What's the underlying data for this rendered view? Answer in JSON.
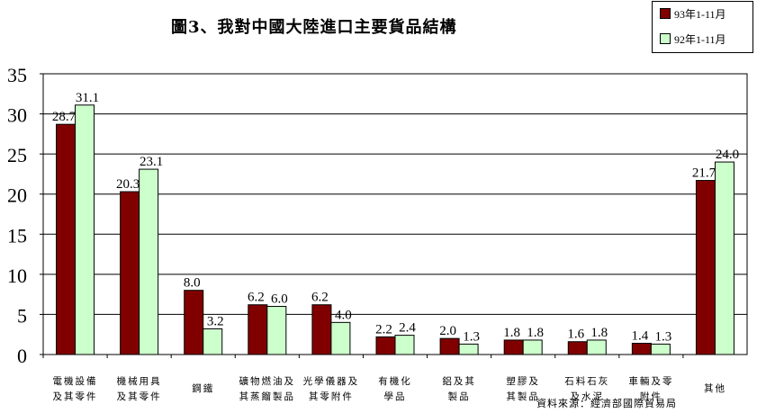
{
  "title": "圖3、我對中國大陸進口主要貨品結構",
  "source": "資料來源：經濟部國際貿易局",
  "chart_data": {
    "type": "bar",
    "categories": [
      [
        "電機設備",
        "及其零件"
      ],
      [
        "機械用具",
        "及其零件"
      ],
      [
        "鋼鐵"
      ],
      [
        "礦物燃油及",
        "其蒸餾製品"
      ],
      [
        "光學儀器及",
        "其零附件"
      ],
      [
        "有機化",
        "學品"
      ],
      [
        "鋁及其",
        "製品"
      ],
      [
        "塑膠及",
        "其製品"
      ],
      [
        "石料石灰",
        "及水泥"
      ],
      [
        "車輛及零",
        "附件"
      ],
      [
        "其他"
      ]
    ],
    "series": [
      {
        "name": "93年1-11月",
        "color": "#800000",
        "values": [
          28.7,
          20.3,
          8.0,
          6.2,
          6.2,
          2.2,
          2.0,
          1.8,
          1.6,
          1.4,
          21.7
        ],
        "labels": [
          "28.7",
          "20.3",
          "8.0",
          "6.2",
          "6.2",
          "2.2",
          "2.0",
          "1.8",
          "1.6",
          "1.4",
          "21.7"
        ]
      },
      {
        "name": "92年1-11月",
        "color": "#ccffcc",
        "values": [
          31.1,
          23.1,
          3.2,
          6.0,
          4.0,
          2.4,
          1.3,
          1.8,
          1.8,
          1.3,
          24.0
        ],
        "labels": [
          "31.1",
          "23.1",
          "3.2",
          "6.0",
          "4.0",
          "2.4",
          "1.3",
          "1.8",
          "1.8",
          "1.3",
          "24.0"
        ]
      }
    ],
    "ylim": [
      0,
      35
    ],
    "yticks": [
      "0",
      "5",
      "10",
      "15",
      "20",
      "25",
      "30",
      "35"
    ],
    "grid": true,
    "legend": "top-right"
  }
}
